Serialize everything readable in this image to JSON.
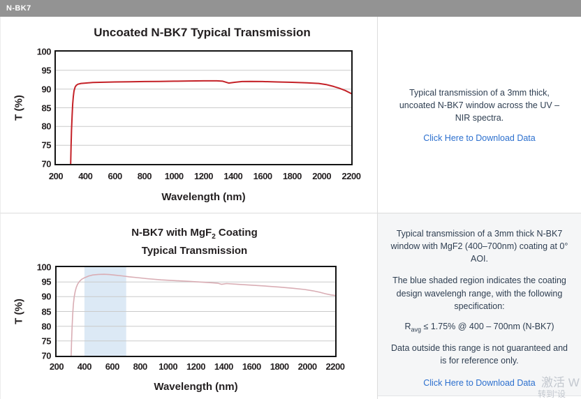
{
  "header": {
    "title": "N-BK7"
  },
  "charts": [
    {
      "title": "Uncoated N-BK7 Typical Transmission"
    },
    {
      "title_prefix": "N-BK7 with MgF",
      "title_sub": "2",
      "title_suffix": " Coating",
      "title_line2": "Typical Transmission"
    }
  ],
  "panels": [
    {
      "text": "Typical transmission of a 3mm thick, uncoated N-BK7 window across the UV – NIR spectra.",
      "link": "Click Here to Download Data"
    },
    {
      "para1": "Typical transmission of a 3mm thick N-BK7 window with MgF2 (400–700nm) coating at 0° AOI.",
      "para2": "The blue shaded region indicates the coating design wavelengh range, with the following specification:",
      "spec_prefix": "R",
      "spec_sub": "avg",
      "spec_rest": " ≤ 1.75% @ 400 – 700nm (N-BK7)",
      "para3": "Data outside this range is not guaranteed and is for reference only.",
      "link": "Click Here to Download Data"
    }
  ],
  "watermark": {
    "line1": "激活 W",
    "line2": "转到“设"
  },
  "chart_data": [
    {
      "type": "line",
      "title": "Uncoated N-BK7 Typical Transmission",
      "xlabel": "Wavelength (nm)",
      "ylabel": "T (%)",
      "xlim": [
        200,
        2200
      ],
      "ylim": [
        70,
        100
      ],
      "xticks": [
        200,
        400,
        600,
        800,
        1000,
        1200,
        1400,
        1600,
        1800,
        2000,
        2200
      ],
      "yticks": [
        70,
        75,
        80,
        85,
        90,
        95,
        100
      ],
      "grid": "horizontal",
      "grid_color": "#cacaca",
      "legend": "none",
      "series": [
        {
          "name": "Uncoated N-BK7 transmission",
          "color": "#c42127",
          "stroke_width": 2,
          "x": [
            300,
            303,
            306,
            310,
            314,
            318,
            323,
            330,
            338,
            350,
            370,
            400,
            450,
            500,
            600,
            700,
            800,
            900,
            1000,
            1100,
            1200,
            1290,
            1330,
            1370,
            1410,
            1460,
            1520,
            1600,
            1700,
            1800,
            1900,
            1980,
            2030,
            2080,
            2120,
            2160,
            2185,
            2200
          ],
          "y": [
            70,
            75,
            79,
            83,
            86,
            88,
            89.5,
            90.5,
            91.0,
            91.3,
            91.5,
            91.6,
            91.75,
            91.8,
            91.9,
            91.95,
            92.0,
            92.05,
            92.1,
            92.15,
            92.2,
            92.2,
            92.1,
            91.6,
            91.8,
            92.0,
            92.05,
            92.0,
            91.9,
            91.8,
            91.65,
            91.5,
            91.2,
            90.7,
            90.2,
            89.6,
            89.1,
            88.8
          ]
        }
      ]
    },
    {
      "type": "line",
      "title": "N-BK7 with MgF2 Coating Typical Transmission",
      "xlabel": "Wavelength (nm)",
      "ylabel": "T (%)",
      "xlim": [
        200,
        2200
      ],
      "ylim": [
        70,
        100
      ],
      "xticks": [
        200,
        400,
        600,
        800,
        1000,
        1200,
        1400,
        1600,
        1800,
        2000,
        2200
      ],
      "yticks": [
        70,
        75,
        80,
        85,
        90,
        95,
        100
      ],
      "grid": "horizontal",
      "grid_color": "#cacaca",
      "legend": "none",
      "shaded_region": {
        "x": [
          400,
          700
        ],
        "color": "#dce9f5",
        "label": "coating design wavelength range 400-700nm"
      },
      "series": [
        {
          "name": "N-BK7 with MgF2 coating transmission",
          "color": "#d9adb4",
          "stroke_width": 1.6,
          "x": [
            305,
            308,
            312,
            316,
            321,
            327,
            334,
            342,
            352,
            365,
            380,
            400,
            430,
            460,
            500,
            540,
            580,
            620,
            670,
            720,
            780,
            850,
            950,
            1050,
            1150,
            1250,
            1320,
            1360,
            1385,
            1420,
            1500,
            1600,
            1700,
            1800,
            1900,
            1980,
            2040,
            2090,
            2130,
            2170,
            2200
          ],
          "y": [
            70,
            75,
            80,
            84,
            87.5,
            90,
            91.8,
            93.2,
            94.3,
            95.2,
            95.9,
            96.4,
            97.0,
            97.35,
            97.55,
            97.6,
            97.5,
            97.3,
            97.05,
            96.75,
            96.45,
            96.1,
            95.7,
            95.45,
            95.2,
            94.9,
            94.7,
            94.55,
            94.2,
            94.45,
            94.2,
            93.9,
            93.6,
            93.25,
            92.85,
            92.45,
            92.0,
            91.5,
            91.0,
            90.6,
            90.4
          ]
        }
      ]
    }
  ]
}
